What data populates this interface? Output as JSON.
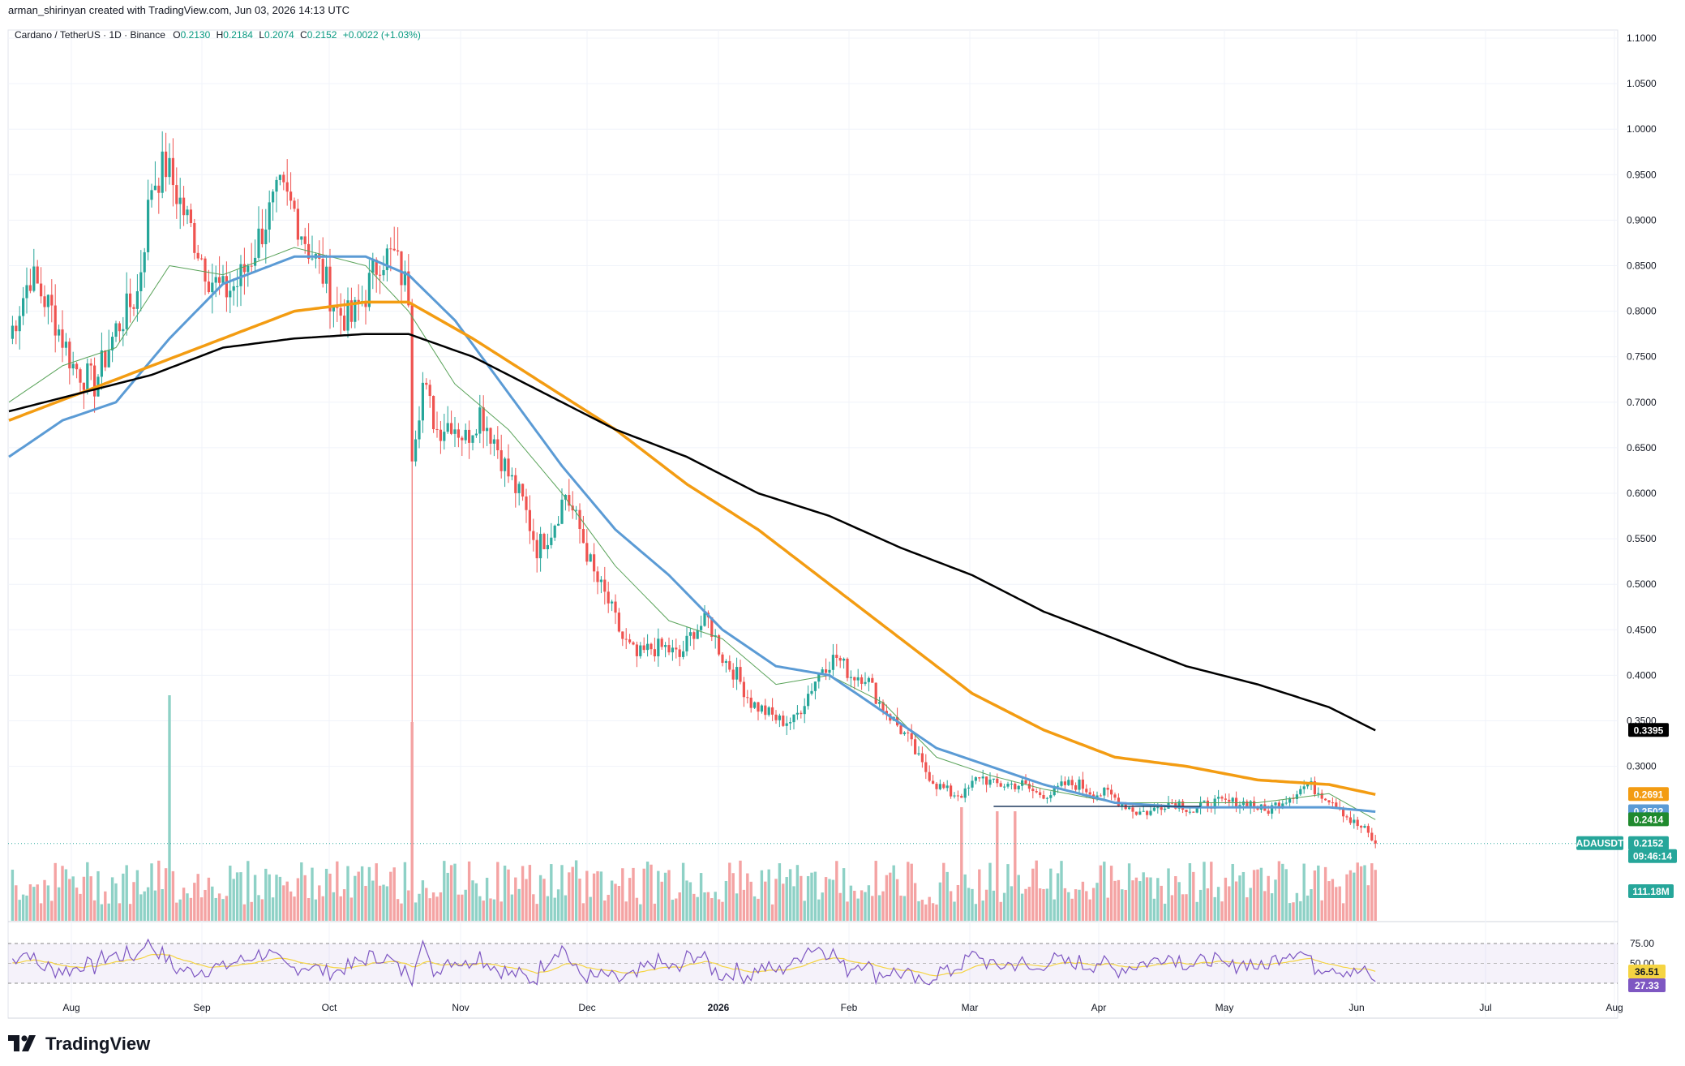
{
  "header": {
    "credit": "arman_shirinyan created with TradingView.com, Jun 03, 2026 14:13 UTC",
    "symbol": "Cardano / TetherUS · 1D · Binance",
    "o_label": "O",
    "o_value": "0.2130",
    "h_label": "H",
    "h_value": "0.2184",
    "l_label": "L",
    "l_value": "0.2074",
    "c_label": "C",
    "c_value": "0.2152",
    "change": "+0.0022 (+1.03%)"
  },
  "brand": {
    "name": "TradingView"
  },
  "colors": {
    "up": "#26a69a",
    "down": "#ef5350",
    "vol_up": "#8ed1c6",
    "vol_down": "#f4a3a3",
    "ma_black": "#000000",
    "ma_orange": "#f39c12",
    "ma_blue": "#5b9bd5",
    "ma_green": "#5aa35a",
    "rsi": "#7e57c2",
    "rsi_ma": "#f5d442"
  },
  "chart_data": {
    "type": "candlestick",
    "symbol": "ADAUSDT",
    "timeframe": "1D",
    "x_ticks": [
      "Aug",
      "Sep",
      "Oct",
      "Nov",
      "Dec",
      "2026",
      "Feb",
      "Mar",
      "Apr",
      "May",
      "Jun",
      "Jul",
      "Aug"
    ],
    "y_ticks": [
      "1.1000",
      "1.0500",
      "1.0000",
      "0.9500",
      "0.9000",
      "0.8500",
      "0.8000",
      "0.7500",
      "0.7000",
      "0.6500",
      "0.6000",
      "0.5500",
      "0.5000",
      "0.4500",
      "0.4000",
      "0.3500",
      "0.3000"
    ],
    "ylim": [
      0.14,
      1.11
    ],
    "price_path": [
      [
        0,
        0.77
      ],
      [
        6,
        0.84
      ],
      [
        12,
        0.8
      ],
      [
        18,
        0.74
      ],
      [
        24,
        0.72
      ],
      [
        30,
        0.78
      ],
      [
        36,
        0.82
      ],
      [
        40,
        0.94
      ],
      [
        44,
        0.96
      ],
      [
        48,
        0.92
      ],
      [
        52,
        0.88
      ],
      [
        56,
        0.84
      ],
      [
        60,
        0.82
      ],
      [
        64,
        0.83
      ],
      [
        68,
        0.86
      ],
      [
        72,
        0.9
      ],
      [
        76,
        0.93
      ],
      [
        80,
        0.91
      ],
      [
        84,
        0.87
      ],
      [
        88,
        0.84
      ],
      [
        92,
        0.8
      ],
      [
        96,
        0.79
      ],
      [
        100,
        0.82
      ],
      [
        104,
        0.86
      ],
      [
        108,
        0.86
      ],
      [
        110,
        0.84
      ],
      [
        112,
        0.82
      ],
      [
        113,
        0.65
      ],
      [
        116,
        0.72
      ],
      [
        120,
        0.67
      ],
      [
        124,
        0.68
      ],
      [
        128,
        0.66
      ],
      [
        132,
        0.69
      ],
      [
        136,
        0.66
      ],
      [
        140,
        0.62
      ],
      [
        144,
        0.59
      ],
      [
        148,
        0.54
      ],
      [
        152,
        0.56
      ],
      [
        156,
        0.6
      ],
      [
        160,
        0.56
      ],
      [
        164,
        0.51
      ],
      [
        168,
        0.48
      ],
      [
        172,
        0.44
      ],
      [
        176,
        0.42
      ],
      [
        180,
        0.43
      ],
      [
        184,
        0.43
      ],
      [
        188,
        0.42
      ],
      [
        192,
        0.45
      ],
      [
        196,
        0.46
      ],
      [
        200,
        0.42
      ],
      [
        204,
        0.4
      ],
      [
        208,
        0.37
      ],
      [
        212,
        0.36
      ],
      [
        216,
        0.35
      ],
      [
        220,
        0.35
      ],
      [
        224,
        0.38
      ],
      [
        228,
        0.41
      ],
      [
        232,
        0.42
      ],
      [
        236,
        0.4
      ],
      [
        240,
        0.4
      ],
      [
        244,
        0.37
      ],
      [
        248,
        0.35
      ],
      [
        252,
        0.33
      ],
      [
        256,
        0.3
      ],
      [
        260,
        0.28
      ],
      [
        264,
        0.27
      ],
      [
        268,
        0.27
      ],
      [
        272,
        0.29
      ],
      [
        276,
        0.28
      ],
      [
        280,
        0.28
      ],
      [
        284,
        0.28
      ],
      [
        288,
        0.27
      ],
      [
        292,
        0.27
      ],
      [
        296,
        0.28
      ],
      [
        300,
        0.28
      ],
      [
        304,
        0.27
      ],
      [
        308,
        0.27
      ],
      [
        312,
        0.26
      ],
      [
        316,
        0.25
      ],
      [
        320,
        0.25
      ],
      [
        324,
        0.26
      ],
      [
        328,
        0.26
      ],
      [
        332,
        0.25
      ],
      [
        336,
        0.26
      ],
      [
        340,
        0.26
      ],
      [
        344,
        0.26
      ],
      [
        348,
        0.26
      ],
      [
        352,
        0.25
      ],
      [
        356,
        0.26
      ],
      [
        360,
        0.27
      ],
      [
        364,
        0.28
      ],
      [
        368,
        0.27
      ],
      [
        372,
        0.26
      ],
      [
        376,
        0.24
      ],
      [
        380,
        0.23
      ],
      [
        383,
        0.2152
      ]
    ],
    "moving_averages": {
      "ma_black": [
        [
          0,
          0.69
        ],
        [
          20,
          0.71
        ],
        [
          40,
          0.73
        ],
        [
          60,
          0.76
        ],
        [
          80,
          0.77
        ],
        [
          100,
          0.775
        ],
        [
          112,
          0.775
        ],
        [
          130,
          0.75
        ],
        [
          150,
          0.71
        ],
        [
          170,
          0.67
        ],
        [
          190,
          0.64
        ],
        [
          210,
          0.6
        ],
        [
          230,
          0.575
        ],
        [
          250,
          0.54
        ],
        [
          270,
          0.51
        ],
        [
          290,
          0.47
        ],
        [
          310,
          0.44
        ],
        [
          330,
          0.41
        ],
        [
          350,
          0.39
        ],
        [
          370,
          0.365
        ],
        [
          383,
          0.3395
        ]
      ],
      "ma_orange": [
        [
          0,
          0.68
        ],
        [
          20,
          0.71
        ],
        [
          40,
          0.74
        ],
        [
          60,
          0.77
        ],
        [
          80,
          0.8
        ],
        [
          100,
          0.81
        ],
        [
          112,
          0.81
        ],
        [
          130,
          0.77
        ],
        [
          150,
          0.72
        ],
        [
          170,
          0.67
        ],
        [
          190,
          0.61
        ],
        [
          210,
          0.56
        ],
        [
          230,
          0.5
        ],
        [
          250,
          0.44
        ],
        [
          270,
          0.38
        ],
        [
          290,
          0.34
        ],
        [
          310,
          0.31
        ],
        [
          330,
          0.3
        ],
        [
          350,
          0.285
        ],
        [
          370,
          0.28
        ],
        [
          383,
          0.2691
        ]
      ],
      "ma_blue": [
        [
          0,
          0.64
        ],
        [
          15,
          0.68
        ],
        [
          30,
          0.7
        ],
        [
          45,
          0.77
        ],
        [
          60,
          0.83
        ],
        [
          80,
          0.86
        ],
        [
          100,
          0.86
        ],
        [
          112,
          0.84
        ],
        [
          125,
          0.79
        ],
        [
          140,
          0.71
        ],
        [
          155,
          0.63
        ],
        [
          170,
          0.56
        ],
        [
          185,
          0.51
        ],
        [
          200,
          0.45
        ],
        [
          215,
          0.41
        ],
        [
          230,
          0.4
        ],
        [
          245,
          0.36
        ],
        [
          260,
          0.32
        ],
        [
          275,
          0.3
        ],
        [
          290,
          0.28
        ],
        [
          310,
          0.26
        ],
        [
          330,
          0.255
        ],
        [
          350,
          0.255
        ],
        [
          370,
          0.255
        ],
        [
          383,
          0.2502
        ]
      ],
      "ma_green": [
        [
          0,
          0.7
        ],
        [
          15,
          0.74
        ],
        [
          30,
          0.76
        ],
        [
          45,
          0.85
        ],
        [
          60,
          0.84
        ],
        [
          80,
          0.87
        ],
        [
          100,
          0.85
        ],
        [
          112,
          0.8
        ],
        [
          125,
          0.72
        ],
        [
          140,
          0.67
        ],
        [
          155,
          0.6
        ],
        [
          170,
          0.52
        ],
        [
          185,
          0.46
        ],
        [
          200,
          0.44
        ],
        [
          215,
          0.39
        ],
        [
          230,
          0.4
        ],
        [
          245,
          0.37
        ],
        [
          260,
          0.31
        ],
        [
          275,
          0.29
        ],
        [
          290,
          0.275
        ],
        [
          310,
          0.26
        ],
        [
          330,
          0.26
        ],
        [
          350,
          0.26
        ],
        [
          370,
          0.27
        ],
        [
          383,
          0.2414
        ]
      ]
    },
    "support_line": {
      "value": 0.256,
      "from_index": 276,
      "to_index": 334
    },
    "price_labels": [
      {
        "value": "0.3395",
        "color": "#000000",
        "price": 0.3395
      },
      {
        "value": "0.2691",
        "color": "#f39c12",
        "price": 0.2691
      },
      {
        "value": "0.2502",
        "color": "#5b9bd5",
        "price": 0.2502
      },
      {
        "value": "0.2414",
        "color": "#1f8a2e",
        "price": 0.2414
      }
    ],
    "last": {
      "symbol": "ADAUSDT",
      "price": "0.2152",
      "countdown": "09:46:14",
      "volume": "111.18M"
    },
    "rsi": {
      "ticks": [
        "75.00",
        "50.00"
      ],
      "value": "36.51",
      "value2": "27.33",
      "upper": 75,
      "lower": 25
    }
  }
}
